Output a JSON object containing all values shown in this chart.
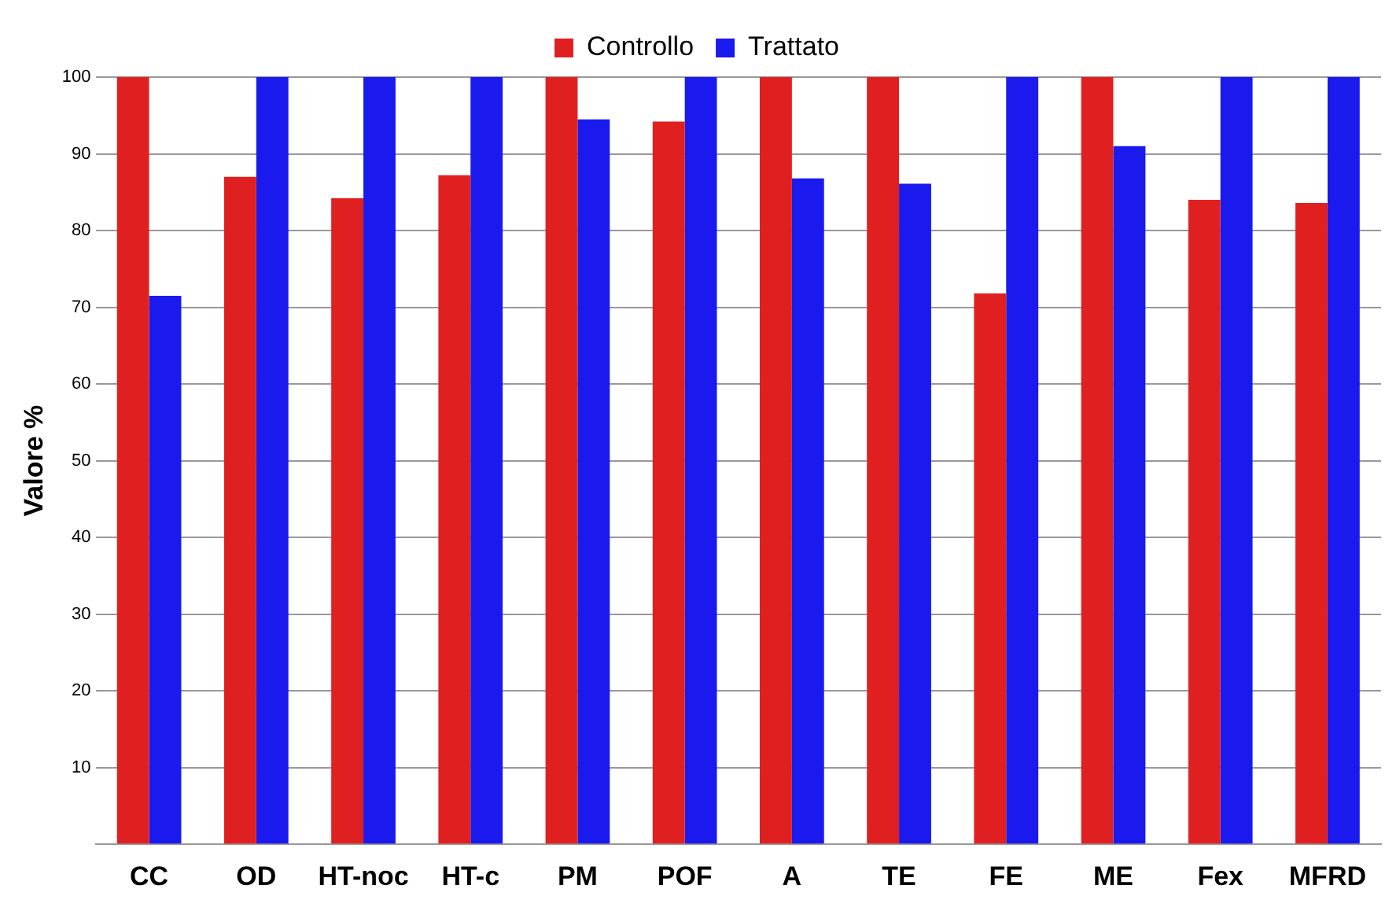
{
  "chart_data": {
    "type": "bar",
    "ylabel": "Valore %",
    "categories": [
      "CC",
      "OD",
      "HT-noc",
      "HT-c",
      "PM",
      "POF",
      "A",
      "TE",
      "FE",
      "ME",
      "Fex",
      "MFRD"
    ],
    "series": [
      {
        "name": "Controllo",
        "color": "#e02020",
        "values": [
          100,
          87,
          84.2,
          87.2,
          100,
          94.2,
          100,
          100,
          71.8,
          100,
          84,
          83.6
        ]
      },
      {
        "name": "Trattato",
        "color": "#1a1aee",
        "values": [
          71.5,
          100,
          100,
          100,
          94.5,
          100,
          86.8,
          86.1,
          100,
          91,
          100,
          100
        ]
      }
    ],
    "ylim": [
      0,
      100
    ],
    "yticks": [
      {
        "value": 0,
        "label": null
      },
      10,
      20,
      30,
      40,
      50,
      60,
      70,
      80,
      90,
      100
    ],
    "grid": "y",
    "legend": "top"
  }
}
